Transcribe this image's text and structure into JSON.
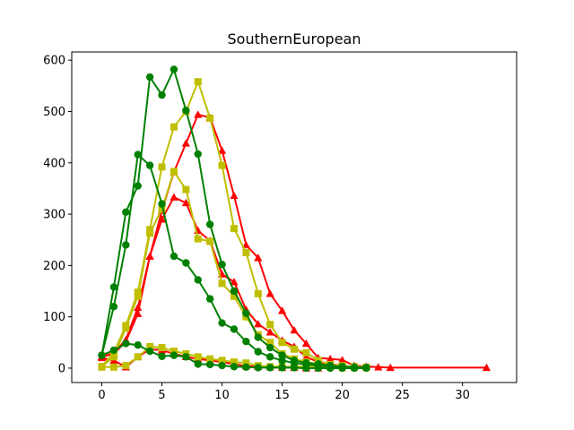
{
  "chart_data": {
    "type": "line",
    "title": "SouthernEuropean",
    "xlabel": "",
    "ylabel": "",
    "xlim": [
      -2.5,
      34.5
    ],
    "ylim": [
      -28,
      616
    ],
    "xticks": [
      0,
      5,
      10,
      15,
      20,
      25,
      30
    ],
    "yticks": [
      0,
      100,
      200,
      300,
      400,
      500,
      600
    ],
    "grid": false,
    "legend": "none",
    "colors": {
      "red": "#ff0000",
      "yellow": "#bfbf00",
      "green": "#008000"
    },
    "series": [
      {
        "color": "red",
        "marker": "triangle",
        "x": [
          0,
          1,
          2,
          3,
          4,
          5,
          6,
          7,
          8,
          9,
          10,
          11,
          12,
          13,
          14,
          15,
          16,
          17,
          18,
          19,
          20,
          21,
          22,
          23,
          24,
          32
        ],
        "y": [
          22,
          30,
          55,
          118,
          218,
          307,
          382,
          438,
          494,
          488,
          424,
          336,
          240,
          215,
          145,
          112,
          74,
          48,
          20,
          18,
          16,
          5,
          3,
          2,
          1,
          1
        ]
      },
      {
        "color": "red",
        "marker": "triangle",
        "x": [
          0,
          1,
          2,
          3,
          4,
          5,
          6,
          7,
          8,
          9,
          10,
          11,
          12,
          13,
          14,
          15,
          16,
          17,
          18,
          19,
          20
        ],
        "y": [
          22,
          28,
          52,
          106,
          218,
          290,
          333,
          322,
          268,
          248,
          183,
          168,
          114,
          86,
          70,
          54,
          42,
          22,
          12,
          8,
          5
        ]
      },
      {
        "color": "red",
        "marker": "triangle",
        "x": [
          0,
          1,
          2,
          3,
          4,
          5,
          6,
          7,
          8,
          9,
          10,
          11,
          12,
          13,
          14,
          15,
          16,
          17,
          18
        ],
        "y": [
          20,
          15,
          2,
          22,
          37,
          35,
          28,
          22,
          18,
          15,
          12,
          8,
          4,
          3,
          2,
          1,
          1,
          0,
          0
        ]
      },
      {
        "color": "yellow",
        "marker": "square",
        "x": [
          0,
          1,
          2,
          3,
          4,
          5,
          6,
          7,
          8,
          9,
          10,
          11,
          12,
          13,
          14,
          15,
          16,
          17,
          18,
          19,
          20,
          21,
          22
        ],
        "y": [
          3,
          30,
          83,
          148,
          270,
          392,
          470,
          500,
          558,
          487,
          395,
          272,
          225,
          145,
          85,
          50,
          37,
          30,
          15,
          7,
          5,
          3,
          2
        ]
      },
      {
        "color": "yellow",
        "marker": "square",
        "x": [
          0,
          1,
          2,
          3,
          4,
          5,
          6,
          7,
          8,
          9,
          10,
          11,
          12,
          13,
          14,
          15,
          16,
          17,
          18,
          19,
          20
        ],
        "y": [
          3,
          22,
          78,
          140,
          263,
          310,
          383,
          348,
          252,
          247,
          165,
          140,
          100,
          65,
          50,
          28,
          18,
          12,
          8,
          5,
          3
        ]
      },
      {
        "color": "yellow",
        "marker": "square",
        "x": [
          0,
          1,
          2,
          3,
          4,
          5,
          6,
          7,
          8,
          9,
          10,
          11,
          12,
          13,
          14,
          15,
          16,
          17,
          18,
          19,
          20,
          21,
          22
        ],
        "y": [
          2,
          2,
          5,
          22,
          42,
          40,
          33,
          28,
          22,
          18,
          15,
          12,
          10,
          5,
          3,
          3,
          3,
          3,
          2,
          2,
          1,
          1,
          1
        ]
      },
      {
        "color": "green",
        "marker": "circle",
        "x": [
          0,
          1,
          2,
          3,
          4,
          5,
          6,
          7,
          8,
          9,
          10,
          11,
          12,
          13,
          14,
          15,
          16,
          17,
          18,
          19,
          20,
          21,
          22
        ],
        "y": [
          25,
          158,
          304,
          355,
          567,
          532,
          582,
          502,
          417,
          280,
          202,
          150,
          107,
          60,
          40,
          25,
          15,
          10,
          8,
          5,
          3,
          2,
          1
        ]
      },
      {
        "color": "green",
        "marker": "circle",
        "x": [
          0,
          1,
          2,
          3,
          4,
          5,
          6,
          7,
          8,
          9,
          10,
          11,
          12,
          13,
          14,
          15,
          16,
          17,
          18,
          19,
          20,
          21,
          22
        ],
        "y": [
          25,
          120,
          240,
          416,
          395,
          320,
          218,
          205,
          172,
          135,
          88,
          76,
          52,
          32,
          22,
          15,
          10,
          7,
          5,
          3,
          2,
          1,
          1
        ]
      },
      {
        "color": "green",
        "marker": "circle",
        "x": [
          0,
          1,
          2,
          3,
          4,
          5,
          6,
          7,
          8,
          9,
          10,
          11,
          12,
          13,
          14,
          15,
          16,
          17,
          18,
          19,
          20,
          21,
          22
        ],
        "y": [
          25,
          35,
          48,
          45,
          33,
          23,
          25,
          22,
          8,
          7,
          5,
          3,
          2,
          1,
          1,
          1,
          1,
          0,
          0,
          0,
          0,
          0,
          0
        ]
      }
    ]
  }
}
